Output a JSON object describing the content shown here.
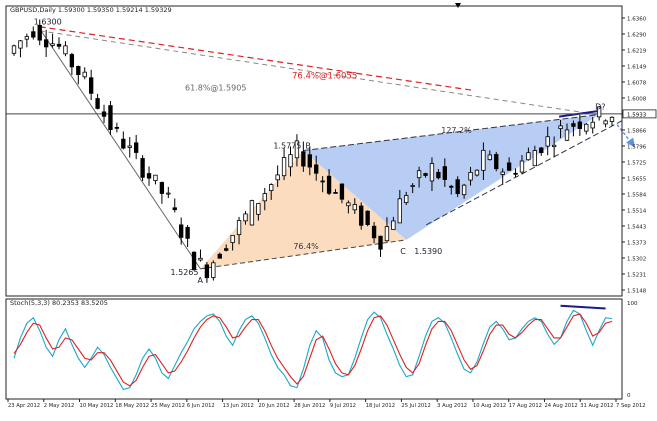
{
  "chart_data": [
    {
      "type": "candlestick",
      "header": "GBPUSD,Daily  1.59300 1.59350 1.59214 1.59329",
      "ylim": [
        1.5148,
        1.6398
      ],
      "y_ticks": [
        "1.6360",
        "1.6290",
        "1.6219",
        "1.6149",
        "1.6078",
        "1.6008",
        "1.5937",
        "1.5866",
        "1.5796",
        "1.5725",
        "1.5655",
        "1.5584",
        "1.5514",
        "1.5443",
        "1.5373",
        "1.5302",
        "1.5231",
        "1.5148"
      ],
      "current_price_label": "1.5933",
      "x_ticks": [
        "23 Apr 2012",
        "2 May 2012",
        "10 May 2012",
        "18 May 2012",
        "25 May 2012",
        "6 Jun 2012",
        "13 Jun 2012",
        "20 Jun 2012",
        "28 Jun 2012",
        "9 Jul 2012",
        "18 Jul 2012",
        "25 Jul 2012",
        "3 Aug 2012",
        "10 Aug 2012",
        "17 Aug 2012",
        "24 Aug 2012",
        "31 Aug 2012",
        "7 Sep 2012"
      ],
      "harmonic_pattern": {
        "points": [
          {
            "name": "X",
            "label": "1.6300",
            "price": 1.63
          },
          {
            "name": "A",
            "label": "A",
            "price": 1.5265,
            "price_label": "1.5265"
          },
          {
            "name": "B",
            "label": "B",
            "price": 1.5775,
            "price_label": "1.5775"
          },
          {
            "name": "C",
            "label": "C",
            "price": 1.539,
            "price_label": "1.5390"
          },
          {
            "name": "D",
            "label": "D?",
            "price": 1.593
          }
        ],
        "ratios": [
          "76.4%",
          "127.2%"
        ]
      },
      "fib_levels": [
        {
          "label": "76.4%@1.6055",
          "price": 1.6055,
          "color": "#e02020"
        },
        {
          "label": "61.8%@1.5905",
          "price": 1.5905,
          "color": "#888888"
        }
      ],
      "colors": {
        "up": "#ffffff",
        "down": "#000000",
        "bc_fill": "#b8cdf4",
        "ab_fill": "#fbdcbf",
        "red": "#e02020",
        "navy": "#1a1a8a",
        "arrow": "#6090e0"
      }
    },
    {
      "type": "line",
      "header": "Stoch(5,3,3) 80.2353 83.5205",
      "ylim": [
        0,
        100
      ],
      "y_ticks": [
        "100",
        "0"
      ],
      "series": [
        {
          "color": "#1aa8c8",
          "values": [
            40,
            62,
            78,
            84,
            70,
            52,
            42,
            60,
            72,
            55,
            40,
            30,
            40,
            52,
            44,
            30,
            18,
            6,
            8,
            22,
            40,
            50,
            40,
            24,
            18,
            32,
            46,
            58,
            72,
            80,
            86,
            88,
            80,
            64,
            54,
            70,
            82,
            86,
            78,
            62,
            44,
            30,
            22,
            10,
            8,
            28,
            54,
            70,
            62,
            38,
            24,
            20,
            22,
            40,
            62,
            82,
            90,
            84,
            66,
            50,
            32,
            20,
            22,
            42,
            64,
            80,
            84,
            78,
            62,
            44,
            28,
            24,
            36,
            56,
            74,
            80,
            72,
            60,
            62,
            72,
            80,
            84,
            80,
            66,
            55,
            62,
            80,
            92,
            88,
            70,
            54,
            70,
            84,
            83
          ]
        },
        {
          "color": "#e02020",
          "values": [
            45,
            55,
            68,
            78,
            76,
            62,
            50,
            52,
            62,
            60,
            50,
            40,
            38,
            46,
            46,
            38,
            26,
            14,
            10,
            16,
            30,
            42,
            44,
            34,
            24,
            26,
            36,
            48,
            62,
            74,
            82,
            86,
            84,
            74,
            62,
            64,
            74,
            82,
            82,
            70,
            54,
            40,
            30,
            20,
            12,
            20,
            40,
            60,
            64,
            50,
            34,
            24,
            22,
            32,
            50,
            70,
            84,
            86,
            76,
            60,
            44,
            30,
            24,
            34,
            54,
            72,
            80,
            80,
            70,
            54,
            38,
            28,
            32,
            48,
            66,
            76,
            76,
            66,
            62,
            68,
            76,
            82,
            82,
            72,
            62,
            62,
            74,
            86,
            88,
            78,
            64,
            68,
            78,
            80
          ]
        }
      ]
    }
  ]
}
